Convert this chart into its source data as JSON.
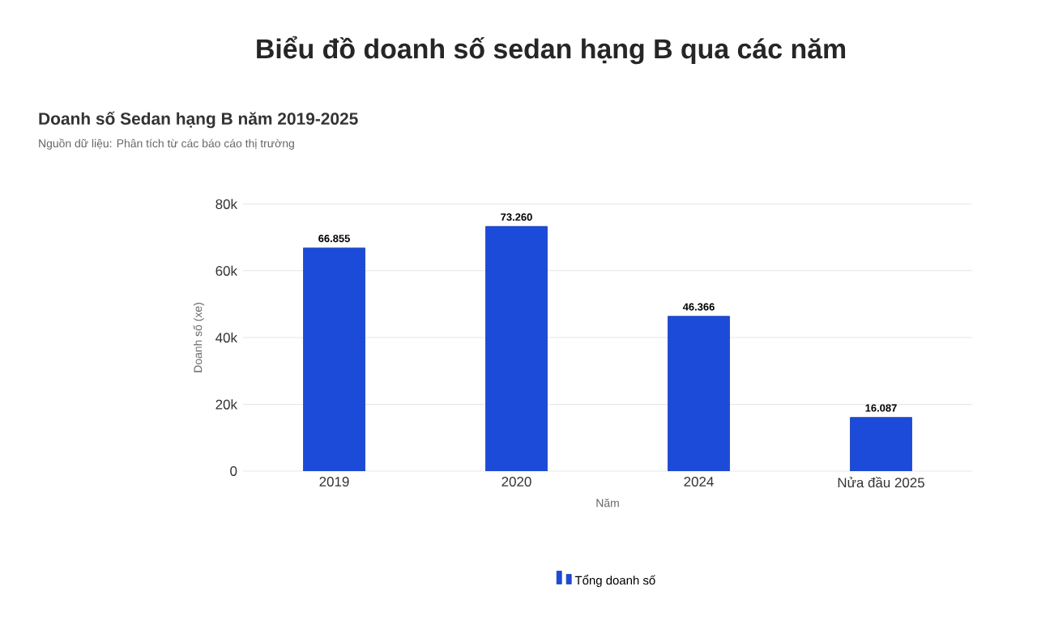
{
  "chart_data": {
    "type": "bar",
    "title": "Biểu đồ doanh số sedan hạng B qua các năm",
    "subtitle": "Doanh số Sedan hạng B năm 2019-2025",
    "annotations": [
      "Nguồn dữ liệu: Phân tích từ các báo cáo thị trường"
    ],
    "xlabel": "Năm",
    "ylabel": "Doanh số (xe)",
    "categories": [
      "2019",
      "2020",
      "2024",
      "Nửa đầu 2025"
    ],
    "series": [
      {
        "name": "Tổng doanh số",
        "color": "#1d4bd9",
        "values": [
          66855,
          73260,
          46366,
          16087
        ],
        "value_labels": [
          "66.855",
          "73.260",
          "46.366",
          "16.087"
        ]
      }
    ],
    "ylim": [
      0,
      80000
    ],
    "yticks": [
      {
        "value": 0,
        "label": "0"
      },
      {
        "value": 20000,
        "label": "20k"
      },
      {
        "value": 40000,
        "label": "40k"
      },
      {
        "value": 60000,
        "label": "60k"
      },
      {
        "value": 80000,
        "label": "80k"
      }
    ],
    "grid": "y",
    "legend": "bottom"
  }
}
